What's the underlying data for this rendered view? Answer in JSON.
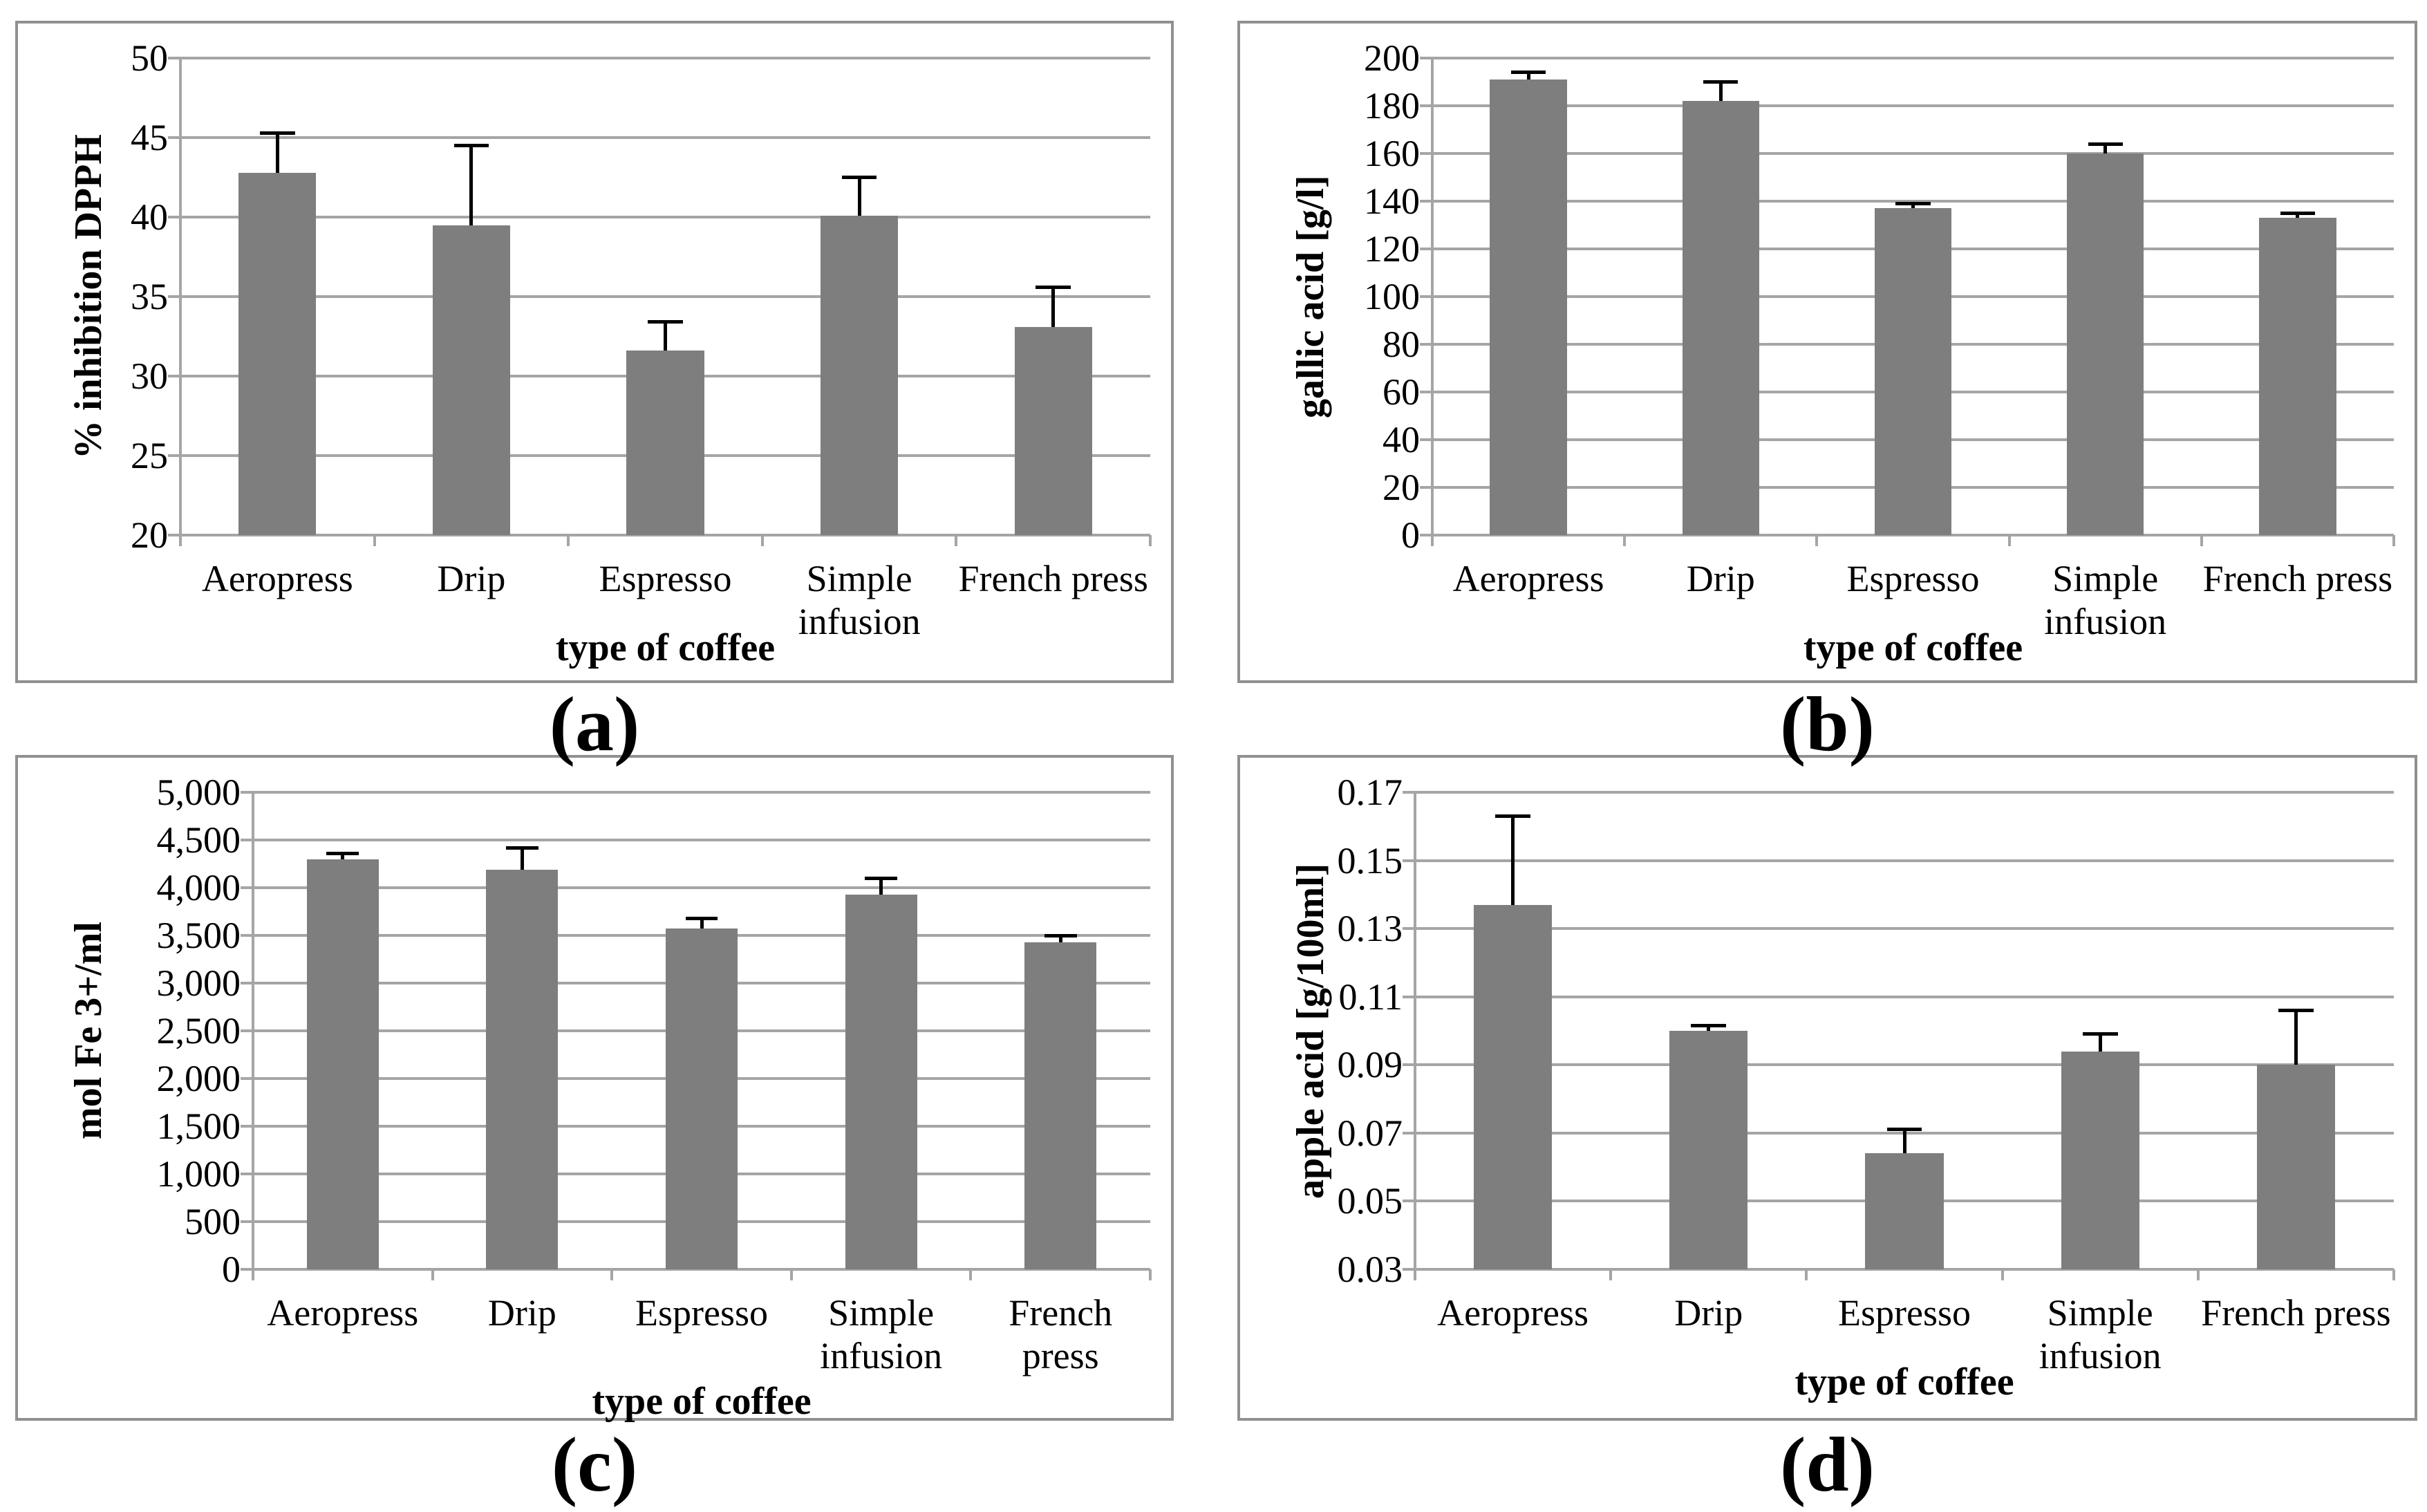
{
  "figure": {
    "captions": [
      "(a)",
      "(b)",
      "(c)",
      "(d)"
    ]
  },
  "colors": {
    "bar": "#7e7e7e",
    "gridline": "#a5a5a5",
    "panel_border": "#909090",
    "error_bar": "#000000",
    "text": "#000000",
    "background": "#ffffff"
  },
  "chart_data": [
    {
      "type": "bar",
      "panel": "a",
      "xlabel": "type of coffee",
      "ylabel": "% inhibition DPPH",
      "categories": [
        "Aeropress",
        "Drip",
        "Espresso",
        "Simple\ninfusion",
        "French press"
      ],
      "values": [
        42.8,
        39.5,
        31.6,
        40.1,
        33.1
      ],
      "errors_plus": [
        2.5,
        5.0,
        1.8,
        2.4,
        2.5
      ],
      "ylim": [
        20,
        50
      ],
      "ytick_step": 5,
      "ytick_decimals": 0,
      "thousands": false,
      "grid": true,
      "legend": "none"
    },
    {
      "type": "bar",
      "panel": "b",
      "xlabel": "type of coffee",
      "ylabel": "gallic acid [g/l]",
      "categories": [
        "Aeropress",
        "Drip",
        "Espresso",
        "Simple\ninfusion",
        "French press"
      ],
      "values": [
        191,
        182,
        137,
        160,
        133
      ],
      "errors_plus": [
        3,
        8,
        2,
        4,
        2
      ],
      "ylim": [
        0,
        200
      ],
      "ytick_step": 20,
      "ytick_decimals": 0,
      "thousands": false,
      "grid": true,
      "legend": "none"
    },
    {
      "type": "bar",
      "panel": "c",
      "xlabel": "type of coffee",
      "ylabel": "mol Fe 3+/ml",
      "categories": [
        "Aeropress",
        "Drip",
        "Espresso",
        "Simple\ninfusion",
        "French\npress"
      ],
      "values": [
        4300,
        4190,
        3570,
        3930,
        3430
      ],
      "errors_plus": [
        60,
        230,
        110,
        170,
        70
      ],
      "ylim": [
        0,
        5000
      ],
      "ytick_step": 500,
      "ytick_decimals": 0,
      "thousands": true,
      "grid": true,
      "legend": "none"
    },
    {
      "type": "bar",
      "panel": "d",
      "xlabel": "type of coffee",
      "ylabel": "apple acid [g/100ml]",
      "categories": [
        "Aeropress",
        "Drip",
        "Espresso",
        "Simple\ninfusion",
        "French press"
      ],
      "values": [
        0.137,
        0.1,
        0.064,
        0.094,
        0.09
      ],
      "errors_plus": [
        0.026,
        0.0015,
        0.007,
        0.005,
        0.016
      ],
      "ylim": [
        0.03,
        0.17
      ],
      "ytick_step": 0.02,
      "ytick_decimals": 2,
      "thousands": false,
      "grid": true,
      "legend": "none"
    }
  ]
}
